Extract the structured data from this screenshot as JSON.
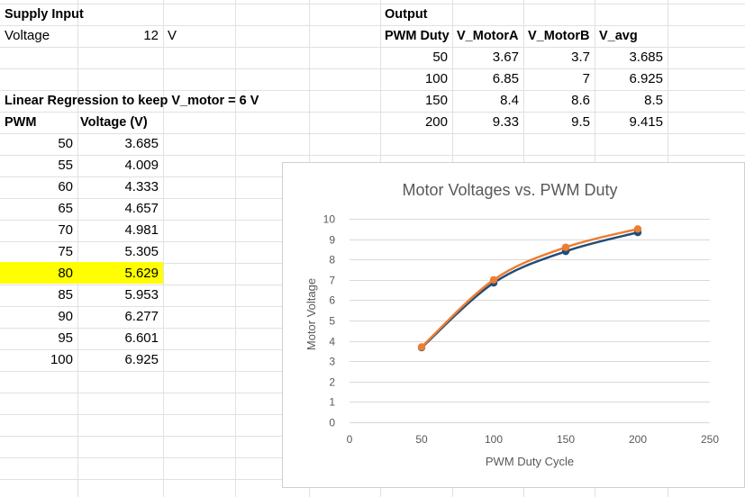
{
  "supply": {
    "heading": "Supply Input",
    "voltage_label": "Voltage",
    "voltage_value": "12",
    "voltage_unit": "V"
  },
  "output": {
    "heading": "Output",
    "columns": [
      "PWM Duty",
      "V_MotorA",
      "V_MotorB",
      "V_avg"
    ],
    "rows": [
      [
        "50",
        "3.67",
        "3.7",
        "3.685"
      ],
      [
        "100",
        "6.85",
        "7",
        "6.925"
      ],
      [
        "150",
        "8.4",
        "8.6",
        "8.5"
      ],
      [
        "200",
        "9.33",
        "9.5",
        "9.415"
      ]
    ]
  },
  "regression": {
    "heading": "Linear Regression to keep V_motor = 6 V",
    "col_pwm": "PWM",
    "col_voltage": "Voltage (V)",
    "highlight_color": "#ffff00",
    "rows": [
      [
        "50",
        "3.685"
      ],
      [
        "55",
        "4.009"
      ],
      [
        "60",
        "4.333"
      ],
      [
        "65",
        "4.657"
      ],
      [
        "70",
        "4.981"
      ],
      [
        "75",
        "5.305"
      ],
      [
        "80",
        "5.629"
      ],
      [
        "85",
        "5.953"
      ],
      [
        "90",
        "6.277"
      ],
      [
        "95",
        "6.601"
      ],
      [
        "100",
        "6.925"
      ]
    ],
    "highlighted_row_index": 6
  },
  "chart_data": {
    "type": "scatter",
    "title": "Motor Voltages vs. PWM Duty",
    "xlabel": "PWM Duty Cycle",
    "ylabel": "Motor Voltage",
    "xlim": [
      0,
      250
    ],
    "ylim": [
      0,
      10
    ],
    "xticks": [
      0,
      50,
      100,
      150,
      200,
      250
    ],
    "yticks": [
      0,
      1,
      2,
      3,
      4,
      5,
      6,
      7,
      8,
      9,
      10
    ],
    "grid": "horizontal",
    "smooth_lines": true,
    "series": [
      {
        "color": "#1f4e79",
        "x": [
          50,
          100,
          150,
          200
        ],
        "y": [
          3.67,
          6.85,
          8.4,
          9.33
        ]
      },
      {
        "color": "#ed7d31",
        "x": [
          50,
          100,
          150,
          200
        ],
        "y": [
          3.7,
          7,
          8.6,
          9.5
        ]
      }
    ]
  }
}
